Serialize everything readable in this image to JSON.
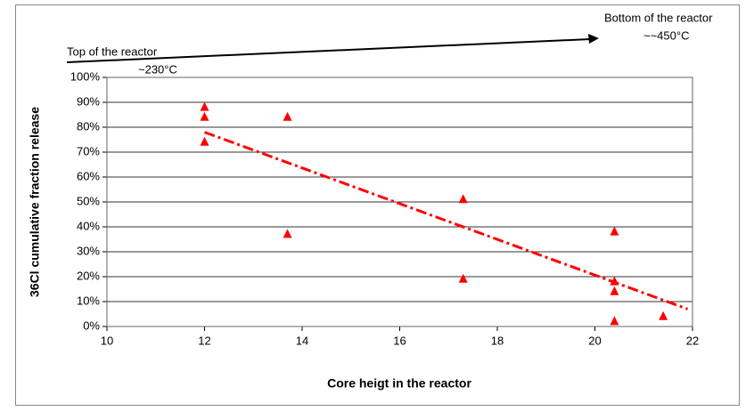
{
  "chart_data": {
    "type": "scatter",
    "xlabel": "Core heigt in the reactor",
    "ylabel": "36Cl cumulative fraction release",
    "annotations": [
      "Top of the reactor",
      "~230°C",
      "Bottom of the reactor",
      "~~450°C"
    ],
    "xlim": [
      10,
      22
    ],
    "xticks": [
      10,
      12,
      14,
      16,
      18,
      20,
      22
    ],
    "ylim": [
      0,
      100
    ],
    "yticks": [
      {
        "value": 0,
        "label": "0%"
      },
      {
        "value": 10,
        "label": "10%"
      },
      {
        "value": 20,
        "label": "20%"
      },
      {
        "value": 30,
        "label": "30%"
      },
      {
        "value": 40,
        "label": "40%"
      },
      {
        "value": 50,
        "label": "50%"
      },
      {
        "value": 60,
        "label": "60%"
      },
      {
        "value": 70,
        "label": "70%"
      },
      {
        "value": 80,
        "label": "80%"
      },
      {
        "value": 90,
        "label": "90%"
      },
      {
        "value": 100,
        "label": "100%"
      }
    ],
    "grid": true,
    "series": [
      {
        "color": "#ff0000",
        "x": [
          12,
          12,
          12,
          13.7,
          13.7,
          17.3,
          17.3,
          20.4,
          20.4,
          20.4,
          20.4,
          21.4
        ],
        "values": [
          88,
          84,
          74,
          84,
          37,
          51,
          19,
          38,
          18,
          14,
          2,
          4
        ]
      }
    ],
    "trendline": {
      "color": "#ff0000",
      "x": [
        12,
        21.9
      ],
      "values": [
        78,
        7
      ]
    }
  }
}
